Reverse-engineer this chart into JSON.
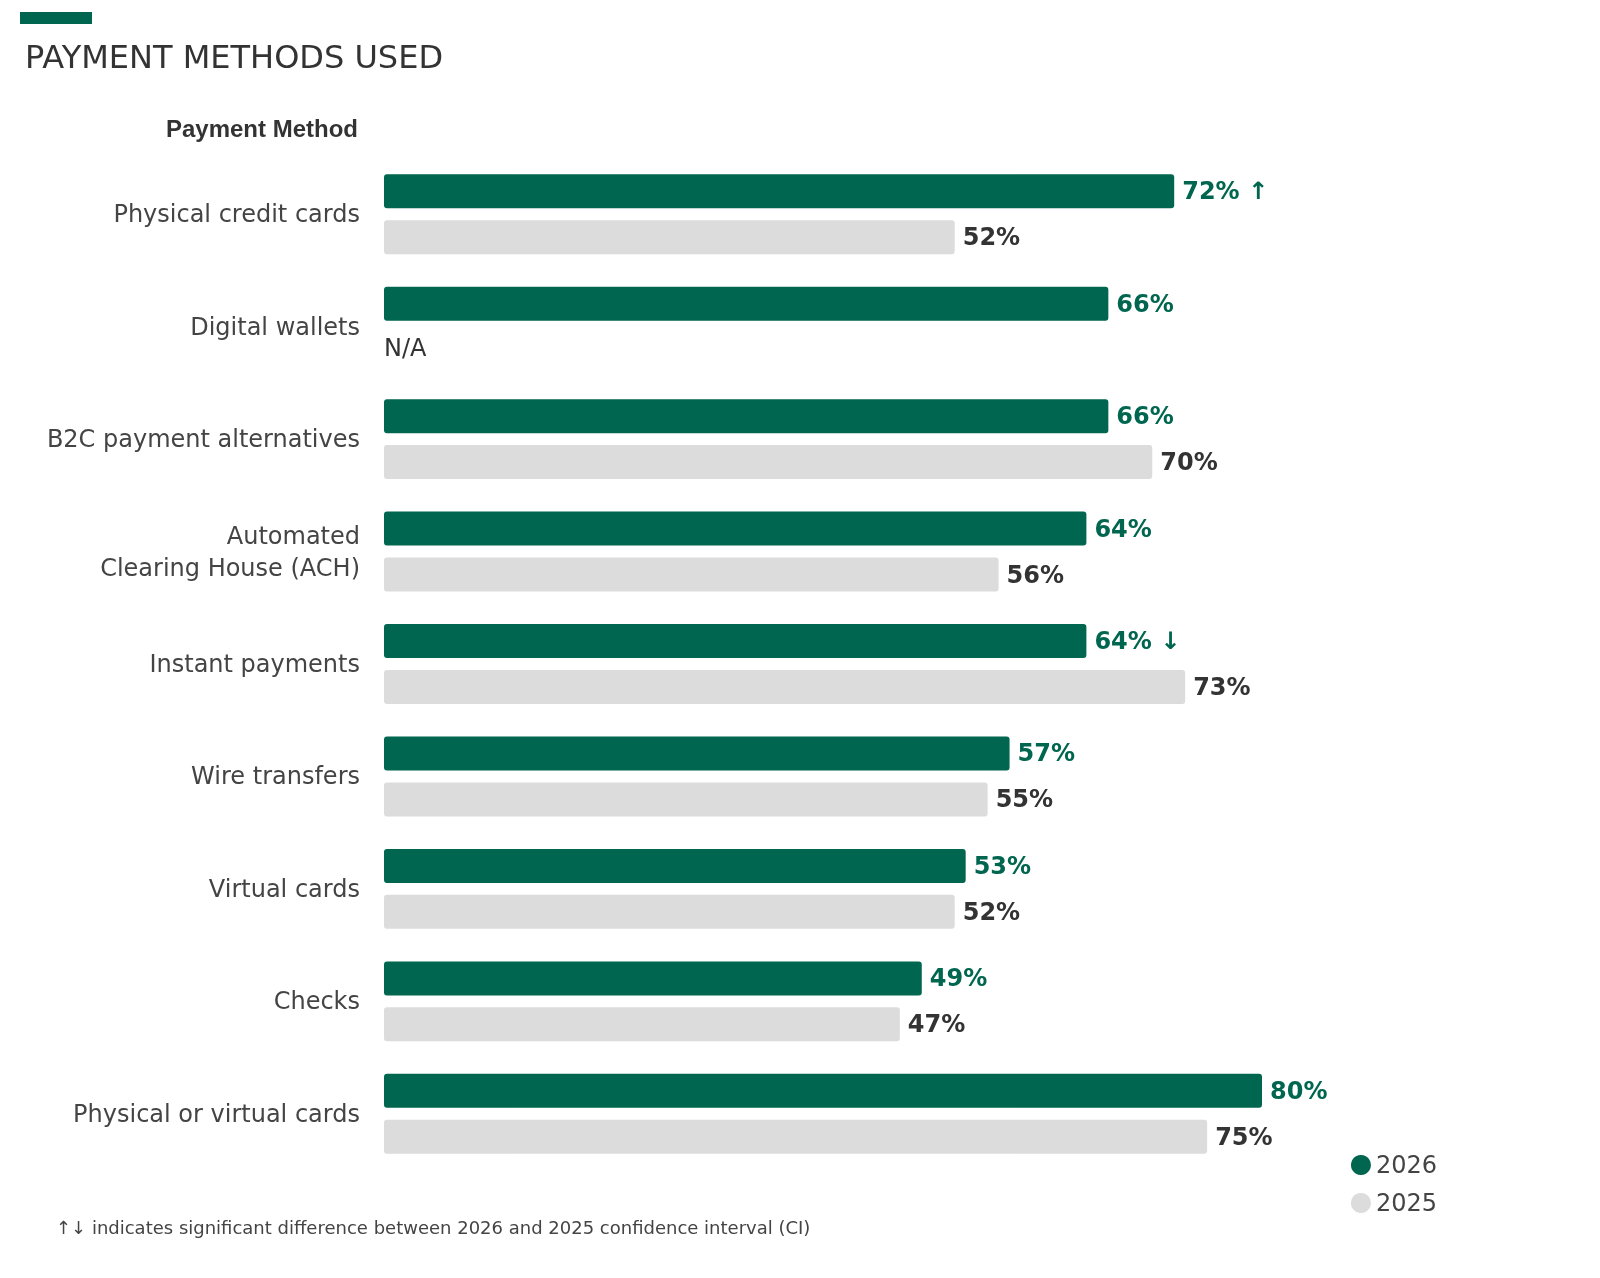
{
  "chart_data": {
    "type": "bar",
    "orientation": "horizontal",
    "title": "PAYMENT METHODS USED",
    "ylabel": "Payment Method",
    "categories": [
      "Physical credit cards",
      "Digital wallets",
      "B2C payment alternatives",
      "Automated\nClearing House (ACH)",
      "Instant payments",
      "Wire transfers",
      "Virtual cards",
      "Checks",
      "Physical or virtual cards"
    ],
    "series": [
      {
        "name": "2026",
        "color": "#00664f",
        "values": [
          72,
          66,
          66,
          64,
          64,
          57,
          53,
          49,
          80
        ],
        "value_labels": [
          "72% ↑",
          "66%",
          "66%",
          "64%",
          "64% ↓",
          "57%",
          "53%",
          "49%",
          "80%"
        ]
      },
      {
        "name": "2025",
        "color": "#dcdcdc",
        "values": [
          52,
          null,
          70,
          56,
          73,
          55,
          52,
          47,
          75
        ],
        "value_labels": [
          "52%",
          "N/A",
          "70%",
          "56%",
          "73%",
          "55%",
          "52%",
          "47%",
          "75%"
        ]
      }
    ],
    "annotations": [
      "↑↓ indicates significant difference between 2026 and 2025 confidence interval (CI)"
    ],
    "legend": "bottom right",
    "grid": false
  }
}
